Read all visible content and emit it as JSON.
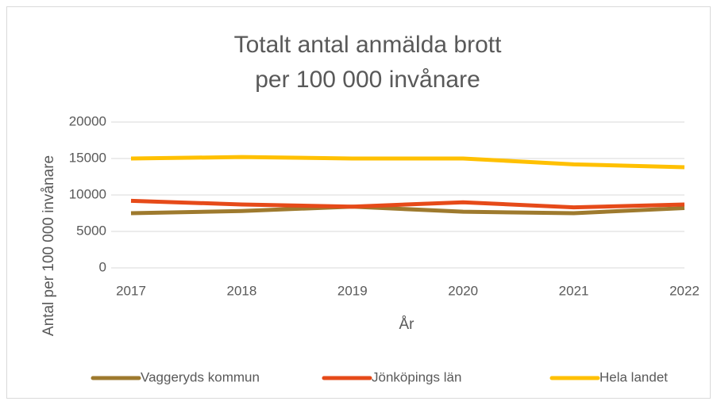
{
  "chart_data": {
    "type": "line",
    "title": [
      "Totalt antal anmälda brott",
      "per 100 000 invånare"
    ],
    "x_label": "År",
    "y_label": "Antal per 100 000 invånare",
    "x": [
      2017,
      2018,
      2019,
      2020,
      2021,
      2022
    ],
    "xlim": [
      2017,
      2022
    ],
    "xticks": [
      2017,
      2018,
      2019,
      2020,
      2021,
      2022
    ],
    "ylim": [
      0,
      20000
    ],
    "yticks": [
      0,
      5000,
      10000,
      15000,
      20000
    ],
    "grid": true,
    "legend": "bottom",
    "series": [
      {
        "name": "Vaggeryds kommun",
        "color": "#9e7a2e",
        "values": [
          7500,
          7800,
          8400,
          7700,
          7500,
          8200
        ]
      },
      {
        "name": "Jönköpings län",
        "color": "#e64a19",
        "values": [
          9200,
          8700,
          8400,
          9000,
          8300,
          8700
        ]
      },
      {
        "name": "Hela landet",
        "color": "#ffc000",
        "values": [
          15000,
          15200,
          15000,
          15000,
          14200,
          13800
        ]
      }
    ]
  }
}
